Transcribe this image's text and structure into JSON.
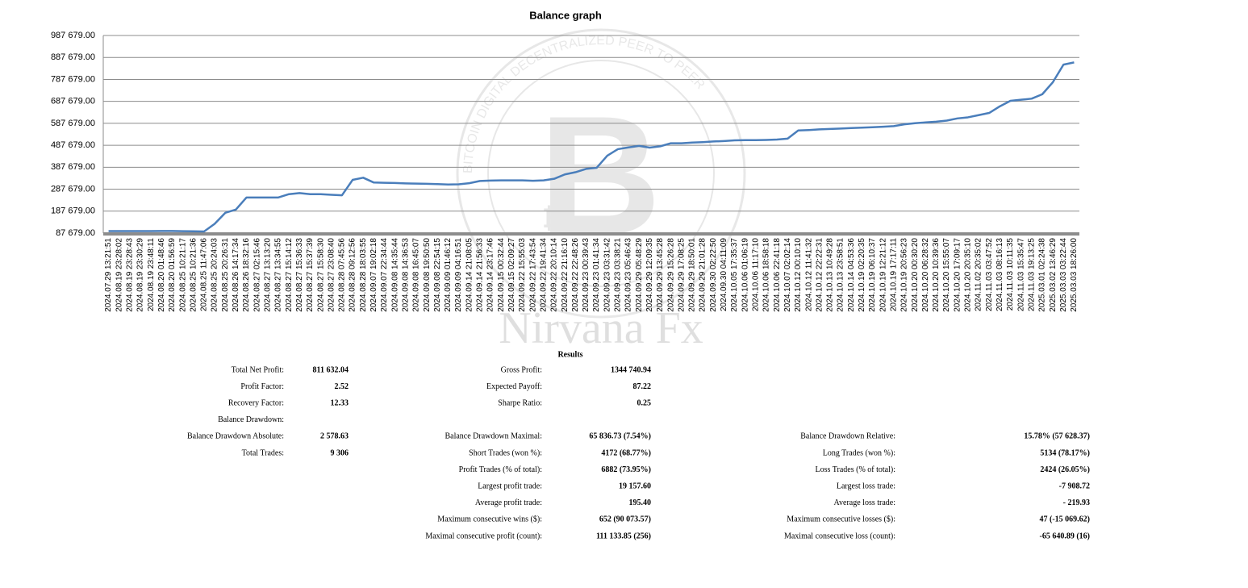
{
  "chart_data": {
    "type": "line",
    "title": "Balance graph",
    "categories": [
      "2024.07.29 13:21:51",
      "2024.08.19 23:28:02",
      "2024.08.19 23:28:43",
      "2024.08.19 23:30:29",
      "2024.08.19 23:48:11",
      "2024.08.20 01:48:46",
      "2024.08.20 01:56:59",
      "2024.08.25 10:21:17",
      "2024.08.25 10:21:36",
      "2024.08.25 11:47:06",
      "2024.08.25 20:24:03",
      "2024.08.25 20:26:31",
      "2024.08.26 14:17:34",
      "2024.08.26 18:32:16",
      "2024.08.27 02:15:46",
      "2024.08.27 13:13:20",
      "2024.08.27 13:34:55",
      "2024.08.27 15:14:12",
      "2024.08.27 15:36:33",
      "2024.08.27 15:37:39",
      "2024.08.27 15:58:30",
      "2024.08.27 23:08:40",
      "2024.08.28 07:45:56",
      "2024.08.28 09:12:56",
      "2024.08.28 18:03:55",
      "2024.09.07 19:02:18",
      "2024.09.07 22:34:44",
      "2024.09.08 14:35:44",
      "2024.09.08 14:36:53",
      "2024.09.08 16:45:07",
      "2024.09.08 19:50:50",
      "2024.09.08 22:54:15",
      "2024.09.09 01:46:12",
      "2024.09.09 04:16:51",
      "2024.09.14 21:08:05",
      "2024.09.14 21:56:33",
      "2024.09.14 23:17:46",
      "2024.09.15 00:32:44",
      "2024.09.15 02:09:27",
      "2024.09.22 15:55:03",
      "2024.09.22 17:43:54",
      "2024.09.22 19:41:34",
      "2024.09.22 20:10:14",
      "2024.09.22 21:16:10",
      "2024.09.22 22:48:26",
      "2024.09.23 00:39:43",
      "2024.09.23 01:41:34",
      "2024.09.23 03:31:42",
      "2024.09.23 03:38:21",
      "2024.09.23 05:46:43",
      "2024.09.29 05:48:29",
      "2024.09.29 12:09:35",
      "2024.09.29 13:45:28",
      "2024.09.29 15:26:28",
      "2024.09.29 17:08:25",
      "2024.09.29 18:50:01",
      "2024.09.29 21:01:28",
      "2024.09.30 02:22:50",
      "2024.09.30 04:11:09",
      "2024.10.05 17:35:37",
      "2024.10.06 01:06:19",
      "2024.10.06 11:17:10",
      "2024.10.06 18:58:18",
      "2024.10.06 22:41:18",
      "2024.10.07 02:02:14",
      "2024.10.12 00:10:10",
      "2024.10.12 11:41:32",
      "2024.10.12 22:22:31",
      "2024.10.13 10:49:28",
      "2024.10.13 23:58:51",
      "2024.10.14 04:53:36",
      "2024.10.19 02:20:35",
      "2024.10.19 06:10:37",
      "2024.10.19 12:21:12",
      "2024.10.19 17:17:11",
      "2024.10.19 20:56:23",
      "2024.10.20 00:30:20",
      "2024.10.20 06:28:32",
      "2024.10.20 10:39:36",
      "2024.10.20 15:55:07",
      "2024.10.20 17:09:17",
      "2024.10.20 20:35:10",
      "2024.11.02 20:35:02",
      "2024.11.03 03:47:52",
      "2024.11.03 08:16:13",
      "2024.11.03 10:11:35",
      "2024.11.03 15:35:47",
      "2024.11.03 19:13:25",
      "2025.03.01 02:24:38",
      "2025.03.02 13:46:29",
      "2025.03.03 03:22:44",
      "2025.03.03 18:26:00"
    ],
    "series": [
      {
        "color": "#4a7ebb",
        "values": [
          97000,
          97000,
          97000,
          97000,
          97000,
          97500,
          97500,
          96500,
          96000,
          95000,
          130000,
          180000,
          195000,
          250000,
          250000,
          250000,
          250000,
          265000,
          270000,
          265000,
          265000,
          262000,
          260000,
          330000,
          340000,
          318000,
          317000,
          316000,
          314000,
          313000,
          312000,
          311000,
          309000,
          310000,
          315000,
          325000,
          327000,
          328000,
          328000,
          328000,
          326000,
          328000,
          335000,
          355000,
          365000,
          380000,
          385000,
          440000,
          470000,
          478000,
          485000,
          477000,
          483000,
          497000,
          497000,
          500000,
          502000,
          505000,
          507000,
          510000,
          511000,
          511000,
          512000,
          514000,
          518000,
          555000,
          557000,
          560000,
          562000,
          564000,
          566000,
          568000,
          570000,
          572000,
          575000,
          583000,
          588000,
          592000,
          595000,
          600000,
          610000,
          615000,
          625000,
          635000,
          665000,
          690000,
          695000,
          700000,
          720000,
          775000,
          855000,
          865000
        ]
      }
    ],
    "ylim": [
      87679,
      987679
    ],
    "yticks": [
      {
        "value": 87679,
        "label": "87 679.00"
      },
      {
        "value": 187679,
        "label": "187 679.00"
      },
      {
        "value": 287679,
        "label": "287 679.00"
      },
      {
        "value": 387679,
        "label": "387 679.00"
      },
      {
        "value": 487679,
        "label": "487 679.00"
      },
      {
        "value": 587679,
        "label": "587 679.00"
      },
      {
        "value": 687679,
        "label": "687 679.00"
      },
      {
        "value": 787679,
        "label": "787 679.00"
      },
      {
        "value": 887679,
        "label": "887 679.00"
      },
      {
        "value": 987679,
        "label": "987 679.00"
      }
    ],
    "grid": true
  },
  "watermark": {
    "text": "Nirvana Fx",
    "ring": "BITCOIN DIGITAL DECENTRALIZED PEER TO PEER"
  },
  "results": {
    "title": "Results",
    "rows": [
      [
        {
          "label": "Total Net Profit:",
          "value": "811 632.04"
        },
        {
          "label": "Gross Profit:",
          "value": "1344 740.94"
        },
        null
      ],
      [
        {
          "label": "Profit Factor:",
          "value": "2.52"
        },
        {
          "label": "Expected Payoff:",
          "value": "87.22"
        },
        null
      ],
      [
        {
          "label": "Recovery Factor:",
          "value": "12.33"
        },
        {
          "label": "Sharpe Ratio:",
          "value": "0.25"
        },
        null
      ],
      [
        {
          "label": "Balance Drawdown:"
        },
        null,
        null
      ],
      [
        {
          "label": "Balance Drawdown Absolute:",
          "value": "2 578.63"
        },
        {
          "label": "Balance Drawdown Maximal:",
          "value": "65 836.73 (7.54%)"
        },
        {
          "label": "Balance Drawdown Relative:",
          "value": "15.78% (57 628.37)"
        }
      ],
      [
        {
          "label": "Total Trades:",
          "value": "9 306"
        },
        {
          "label": "Short Trades (won %):",
          "value": "4172 (68.77%)"
        },
        {
          "label": "Long Trades (won %):",
          "value": "5134 (78.17%)"
        }
      ],
      [
        null,
        {
          "label": "Profit Trades (% of total):",
          "value": "6882 (73.95%)"
        },
        {
          "label": "Loss Trades (% of total):",
          "value": "2424 (26.05%)"
        }
      ],
      [
        null,
        {
          "label": "Largest profit trade:",
          "value": "19 157.60"
        },
        {
          "label": "Largest loss trade:",
          "value": "-7 908.72"
        }
      ],
      [
        null,
        {
          "label": "Average profit trade:",
          "value": "195.40"
        },
        {
          "label": "Average loss trade:",
          "value": "- 219.93"
        }
      ],
      [
        null,
        {
          "label": "Maximum consecutive wins ($):",
          "value": "652 (90 073.57)"
        },
        {
          "label": "Maximum consecutive losses ($):",
          "value": "47 (-15 069.62)"
        }
      ],
      [
        null,
        {
          "label": "Maximal consecutive profit (count):",
          "value": "111 133.85 (256)"
        },
        {
          "label": "Maximal consecutive loss (count):",
          "value": "-65 640.89 (16)"
        }
      ]
    ]
  }
}
